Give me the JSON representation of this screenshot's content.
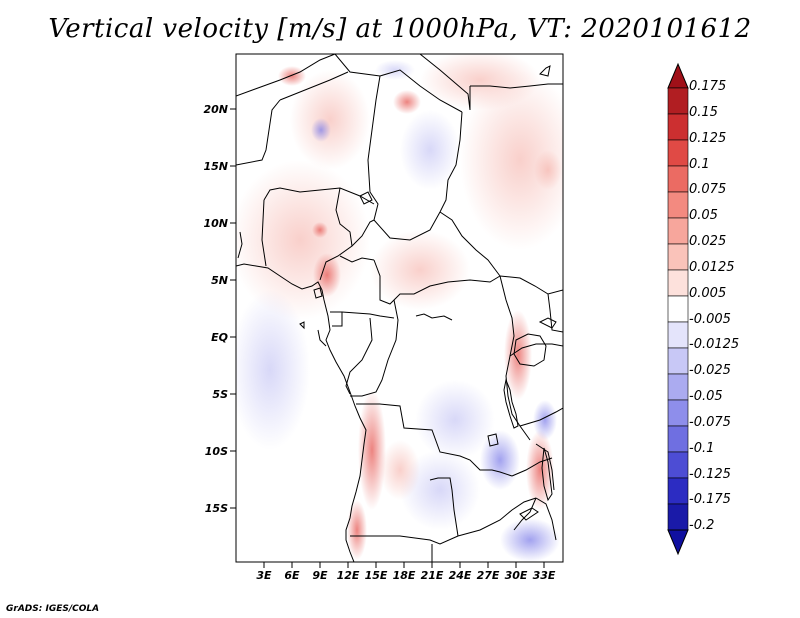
{
  "title": "Vertical velocity [m/s] at 1000hPa, VT: 2020101612",
  "credit": "GrADS: IGES/COLA",
  "map": {
    "region": "Central Africa",
    "lon_range": [
      0,
      35
    ],
    "lat_range": [
      -20,
      25
    ],
    "lat_labels": [
      "20N",
      "15N",
      "10N",
      "5N",
      "EQ",
      "5S",
      "10S",
      "15S"
    ],
    "lon_labels": [
      "3E",
      "6E",
      "9E",
      "12E",
      "15E",
      "18E",
      "21E",
      "24E",
      "27E",
      "30E",
      "33E"
    ],
    "features": [
      "Atlantic coastline",
      "Gulf of Guinea",
      "Lake Victoria",
      "Lake Tanganyika",
      "Lake Malawi",
      "Red Sea coast",
      "country borders"
    ]
  },
  "colorbar": {
    "labels": [
      "0.175",
      "0.15",
      "0.125",
      "0.1",
      "0.075",
      "0.05",
      "0.025",
      "0.0125",
      "0.005",
      "-0.005",
      "-0.0125",
      "-0.025",
      "-0.05",
      "-0.075",
      "-0.1",
      "-0.125",
      "-0.175",
      "-0.2"
    ],
    "colors": [
      "#b11e22",
      "#cc2f30",
      "#e04a45",
      "#eb6b63",
      "#f38a80",
      "#f7a69c",
      "#fac3ba",
      "#fde1dc",
      "#ffffff",
      "#e4e4fb",
      "#c8c8f6",
      "#ababf0",
      "#8e8eeb",
      "#6f6fe1",
      "#4d4dd4",
      "#2c2cc2",
      "#1a1aa8"
    ],
    "top_color": "#a01018",
    "bottom_color": "#1010a0"
  }
}
